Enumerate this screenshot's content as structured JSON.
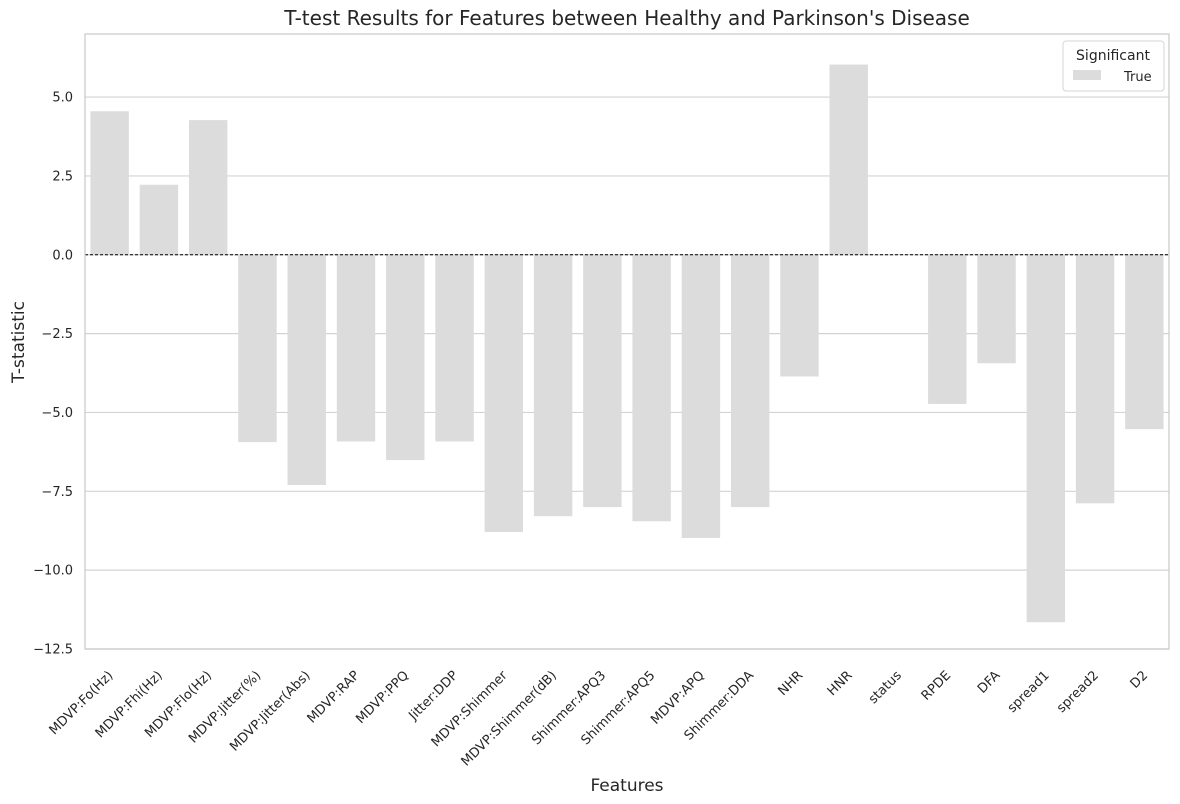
{
  "chart_data": {
    "type": "bar",
    "title": "T-test Results for Features between Healthy and Parkinson's Disease",
    "xlabel": "Features",
    "ylabel": "T-statistic",
    "ylim": [
      -12.5,
      7.0
    ],
    "yticks": [
      -12.5,
      -10.0,
      -7.5,
      -5.0,
      -2.5,
      0.0,
      2.5,
      5.0
    ],
    "ytick_labels": [
      "−12.5",
      "−10.0",
      "−7.5",
      "−5.0",
      "−2.5",
      "0.0",
      "2.5",
      "5.0"
    ],
    "grid": "horizontal",
    "reference_line": 0,
    "bar_color": "#dcdcdc",
    "categories": [
      "MDVP:Fo(Hz)",
      "MDVP:Fhi(Hz)",
      "MDVP:Flo(Hz)",
      "MDVP:Jitter(%)",
      "MDVP:Jitter(Abs)",
      "MDVP:RAP",
      "MDVP:PPQ",
      "Jitter:DDP",
      "MDVP:Shimmer",
      "MDVP:Shimmer(dB)",
      "Shimmer:APQ3",
      "Shimmer:APQ5",
      "MDVP:APQ",
      "Shimmer:DDA",
      "NHR",
      "HNR",
      "status",
      "RPDE",
      "DFA",
      "spread1",
      "spread2",
      "D2"
    ],
    "series": [
      {
        "name": "True",
        "values": [
          4.55,
          2.22,
          4.27,
          -5.94,
          -7.3,
          -5.92,
          -6.51,
          -5.92,
          -8.79,
          -8.29,
          -8.0,
          -8.45,
          -8.98,
          -8.0,
          -3.86,
          6.03,
          null,
          -4.73,
          -3.44,
          -11.65,
          -7.88,
          -5.53
        ]
      }
    ],
    "legend": {
      "title": "Significant",
      "entries": [
        "True"
      ],
      "placement": "top-right"
    }
  }
}
